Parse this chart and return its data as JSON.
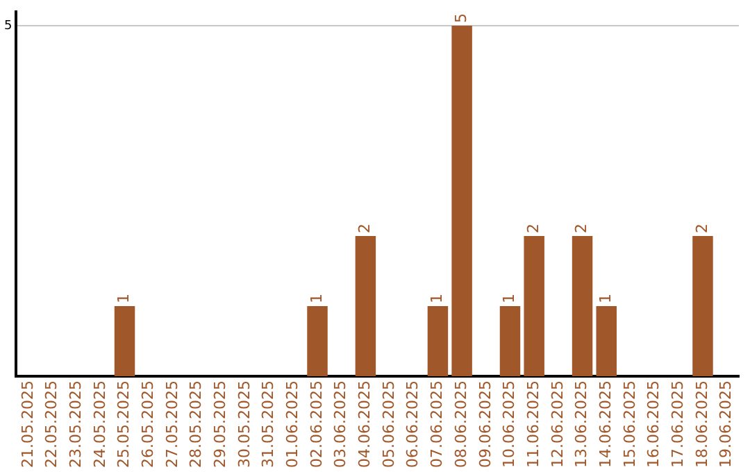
{
  "chart_data": {
    "type": "bar",
    "categories": [
      "21.05.2025",
      "22.05.2025",
      "23.05.2025",
      "24.05.2025",
      "25.05.2025",
      "26.05.2025",
      "27.05.2025",
      "28.05.2025",
      "29.05.2025",
      "30.05.2025",
      "31.05.2025",
      "01.06.2025",
      "02.06.2025",
      "03.06.2025",
      "04.06.2025",
      "05.06.2025",
      "06.06.2025",
      "07.06.2025",
      "08.06.2025",
      "09.06.2025",
      "10.06.2025",
      "11.06.2025",
      "12.06.2025",
      "13.06.2025",
      "14.06.2025",
      "15.06.2025",
      "16.06.2025",
      "17.06.2025",
      "18.06.2025",
      "19.06.2025"
    ],
    "values": [
      0,
      0,
      0,
      0,
      1,
      0,
      0,
      0,
      0,
      0,
      0,
      0,
      1,
      0,
      2,
      0,
      0,
      1,
      5,
      0,
      1,
      2,
      0,
      2,
      1,
      0,
      0,
      0,
      2,
      0
    ],
    "value_labels": [
      null,
      null,
      null,
      null,
      "1",
      null,
      null,
      null,
      null,
      null,
      null,
      null,
      "1",
      null,
      "2",
      null,
      null,
      "1",
      "5",
      null,
      "1",
      "2",
      null,
      "2",
      "1",
      null,
      null,
      null,
      "2",
      null
    ],
    "color": "#a0572a",
    "ylim": [
      0,
      5.2
    ],
    "yticks": [
      5
    ],
    "grid": "y",
    "legend": false
  }
}
